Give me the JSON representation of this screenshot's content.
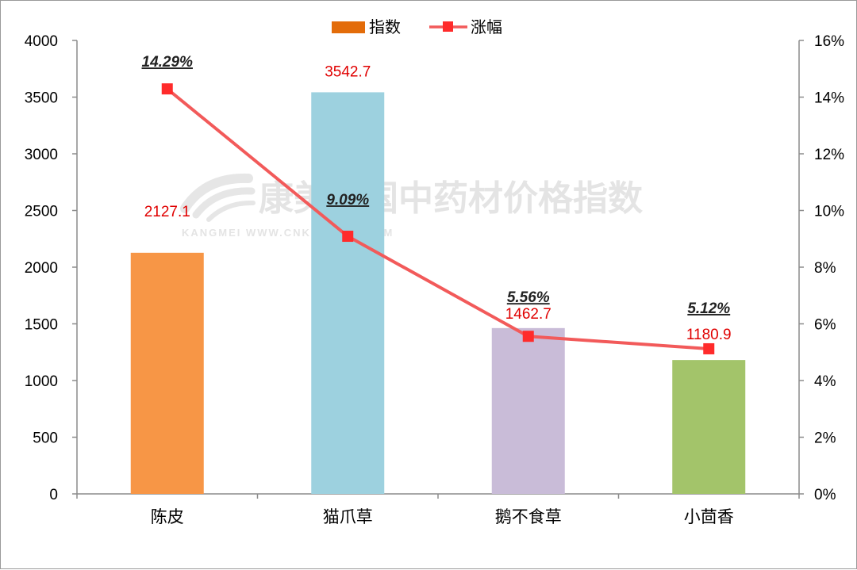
{
  "chart_data": {
    "type": "bar",
    "categories": [
      "陈皮",
      "猫爪草",
      "鹅不食草",
      "小茴香"
    ],
    "series": [
      {
        "name": "指数",
        "type": "bar",
        "axis": "left",
        "values": [
          2127.1,
          3542.7,
          1462.7,
          1180.9
        ],
        "labels": [
          "2127.1",
          "3542.7",
          "1462.7",
          "1180.9"
        ],
        "colors": [
          "#F79646",
          "#9DD1DF",
          "#C9BCD8",
          "#A3C46A"
        ]
      },
      {
        "name": "涨幅",
        "type": "line",
        "axis": "right",
        "values": [
          14.29,
          9.09,
          5.56,
          5.12
        ],
        "labels": [
          "14.29%",
          "9.09%",
          "5.56%",
          "5.12%"
        ],
        "color": "#F25A5A",
        "marker_color": "#FF2B2B"
      }
    ],
    "ylim": [
      0,
      4000
    ],
    "y_ticks": [
      "0",
      "500",
      "1000",
      "1500",
      "2000",
      "2500",
      "3000",
      "3500",
      "4000"
    ],
    "y2lim": [
      0,
      16
    ],
    "y2_ticks": [
      "0%",
      "2%",
      "4%",
      "6%",
      "8%",
      "10%",
      "12%",
      "14%",
      "16%"
    ],
    "legend_position": "top",
    "grid": false
  },
  "legend": {
    "bar_color": "#E36C0A"
  },
  "watermark": {
    "text_cn": "康美中国中药材价格指数",
    "text_en": "KANGMEI WWW.CNKMPRICE.COM"
  }
}
